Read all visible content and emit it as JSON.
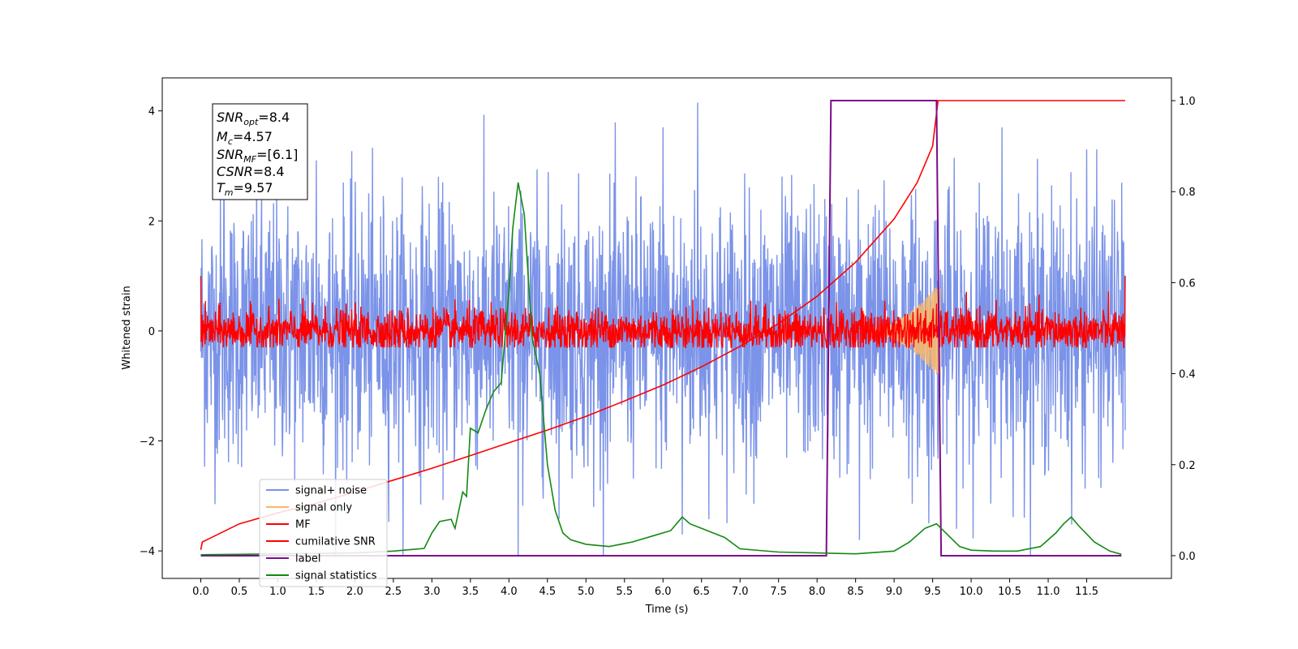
{
  "chart_data": {
    "type": "line",
    "xlabel": "Time (s)",
    "ylabel": "Whitened strain",
    "xlim": [
      -0.5,
      12.6
    ],
    "ylim": [
      -4.5,
      4.6
    ],
    "y2lim": [
      -0.05,
      1.05
    ],
    "x_ticks": [
      0.0,
      0.5,
      1.0,
      1.5,
      2.0,
      2.5,
      3.0,
      3.5,
      4.0,
      4.5,
      5.0,
      5.5,
      6.0,
      6.5,
      7.0,
      7.5,
      8.0,
      8.5,
      9.0,
      9.5,
      10.0,
      10.5,
      11.0,
      11.5
    ],
    "x_tick_labels": [
      "0.0",
      "0.5",
      "1.0",
      "1.5",
      "2.0",
      "2.5",
      "3.0",
      "3.5",
      "4.0",
      "4.5",
      "5.0",
      "5.5",
      "6.0",
      "6.5",
      "7.0",
      "7.5",
      "8.0",
      "8.5",
      "9.0",
      "9.5",
      "10.0",
      "10.5",
      "11.0",
      "11.5"
    ],
    "y_ticks": [
      -4,
      -2,
      0,
      2,
      4
    ],
    "y_tick_labels": [
      "−4",
      "−2",
      "0",
      "2",
      "4"
    ],
    "y2_ticks": [
      0.0,
      0.2,
      0.4,
      0.6,
      0.8,
      1.0
    ],
    "y2_tick_labels": [
      "0.0",
      "0.2",
      "0.4",
      "0.6",
      "0.8",
      "1.0"
    ],
    "grid": false,
    "legend_position": "lower-left",
    "info_box": {
      "snr_opt": "=8.4",
      "mc": "=4.57",
      "snr_mf": "=[6.1]",
      "csnr": "=8.4",
      "tm": "=9.57"
    },
    "series": [
      {
        "name": "signal+ noise",
        "color": "#7b93e8",
        "axis": "left",
        "kind": "noise",
        "x_range": [
          0.0,
          12.0
        ],
        "amplitude": 1.2,
        "spikes": [
          [
            0.3,
            3.0
          ],
          [
            1.5,
            3.1
          ],
          [
            4.12,
            -4.1
          ],
          [
            5.1,
            -3.2
          ],
          [
            6.0,
            3.7
          ],
          [
            6.25,
            -3.7
          ],
          [
            6.45,
            4.15
          ],
          [
            8.55,
            -3.8
          ],
          [
            9.45,
            -3.5
          ],
          [
            10.4,
            3.7
          ],
          [
            11.5,
            3.3
          ],
          [
            8.1,
            2.4
          ]
        ]
      },
      {
        "name": "signal only",
        "color": "#f5b86e",
        "axis": "left",
        "kind": "chirp",
        "x_range": [
          8.5,
          9.6
        ],
        "peak": 0.9
      },
      {
        "name": "MF",
        "color": "#ff0000",
        "axis": "left",
        "kind": "noise",
        "x_range": [
          0.0,
          12.0
        ],
        "amplitude": 0.2
      },
      {
        "name": "cumilative SNR",
        "color": "#ff0000",
        "axis": "right",
        "x": [
          0.0,
          0.02,
          0.5,
          1.0,
          1.5,
          2.0,
          2.5,
          3.0,
          3.5,
          4.0,
          4.5,
          5.0,
          5.5,
          6.0,
          6.5,
          7.0,
          7.5,
          8.0,
          8.5,
          9.0,
          9.3,
          9.5,
          9.57,
          12.0
        ],
        "y": [
          0.013,
          0.03,
          0.07,
          0.094,
          0.115,
          0.14,
          0.166,
          0.192,
          0.22,
          0.248,
          0.276,
          0.306,
          0.34,
          0.375,
          0.415,
          0.46,
          0.51,
          0.57,
          0.645,
          0.74,
          0.82,
          0.9,
          1.0,
          1.0
        ]
      },
      {
        "name": "label",
        "color": "#7b0c8a",
        "axis": "right",
        "x": [
          0.0,
          8.12,
          8.18,
          9.55,
          9.61,
          11.95
        ],
        "y": [
          0.0,
          0.0,
          1.0,
          1.0,
          0.0,
          0.0
        ]
      },
      {
        "name": "signal statistics",
        "color": "#138a13",
        "axis": "right",
        "x": [
          0.0,
          0.5,
          1.0,
          1.5,
          2.0,
          2.5,
          2.9,
          3.0,
          3.1,
          3.25,
          3.3,
          3.4,
          3.45,
          3.5,
          3.6,
          3.7,
          3.8,
          3.9,
          4.0,
          4.05,
          4.12,
          4.2,
          4.3,
          4.4,
          4.5,
          4.6,
          4.7,
          4.8,
          5.0,
          5.3,
          5.6,
          5.9,
          6.1,
          6.25,
          6.35,
          6.5,
          6.8,
          7.0,
          7.5,
          8.0,
          8.5,
          9.0,
          9.2,
          9.4,
          9.55,
          9.7,
          9.85,
          10.0,
          10.3,
          10.6,
          10.9,
          11.1,
          11.2,
          11.3,
          11.4,
          11.6,
          11.8,
          11.95
        ],
        "y": [
          0.002,
          0.003,
          0.004,
          0.005,
          0.006,
          0.01,
          0.016,
          0.05,
          0.075,
          0.08,
          0.06,
          0.14,
          0.13,
          0.28,
          0.27,
          0.32,
          0.36,
          0.38,
          0.58,
          0.72,
          0.82,
          0.75,
          0.48,
          0.4,
          0.2,
          0.1,
          0.05,
          0.035,
          0.025,
          0.02,
          0.03,
          0.045,
          0.055,
          0.085,
          0.07,
          0.06,
          0.04,
          0.015,
          0.008,
          0.006,
          0.004,
          0.01,
          0.03,
          0.06,
          0.07,
          0.045,
          0.02,
          0.012,
          0.01,
          0.01,
          0.02,
          0.05,
          0.07,
          0.085,
          0.065,
          0.03,
          0.01,
          0.003
        ]
      }
    ]
  }
}
